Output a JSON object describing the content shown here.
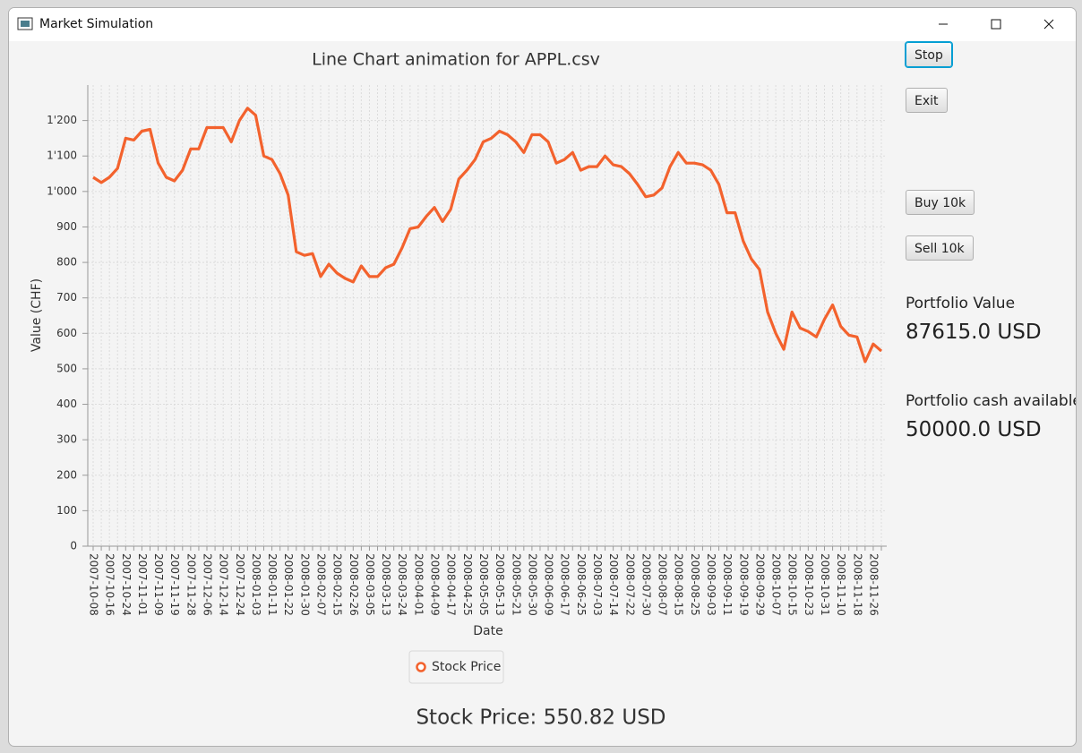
{
  "window": {
    "title": "Market Simulation"
  },
  "buttons": [
    "Stop",
    "Exit",
    "Buy 10k",
    "Sell 10k"
  ],
  "portfolio": {
    "value_label": "Portfolio Value",
    "value": "87615.0 USD",
    "cash_label": "Portfolio cash available",
    "cash": "50000.0 USD"
  },
  "status": "Stock Price: 550.82 USD",
  "chart_data": {
    "type": "line",
    "title": "Line Chart animation for APPL.csv",
    "x_label": "Date",
    "y_label": "Value (CHF)",
    "categories": [
      "2007-10-08",
      null,
      "2007-10-16",
      null,
      "2007-10-24",
      null,
      "2007-11-01",
      null,
      "2007-11-09",
      null,
      "2007-11-19",
      null,
      "2007-11-28",
      null,
      "2007-12-06",
      null,
      "2007-12-14",
      null,
      "2007-12-24",
      null,
      "2008-01-03",
      null,
      "2008-01-11",
      null,
      "2008-01-22",
      null,
      "2008-01-30",
      null,
      "2008-02-07",
      null,
      "2008-02-15",
      null,
      "2008-02-26",
      null,
      "2008-03-05",
      null,
      "2008-03-13",
      null,
      "2008-03-24",
      null,
      "2008-04-01",
      null,
      "2008-04-09",
      null,
      "2008-04-17",
      null,
      "2008-04-25",
      null,
      "2008-05-05",
      null,
      "2008-05-13",
      null,
      "2008-05-21",
      null,
      "2008-05-30",
      null,
      "2008-06-09",
      null,
      "2008-06-17",
      null,
      "2008-06-25",
      null,
      "2008-07-03",
      null,
      "2008-07-14",
      null,
      "2008-07-22",
      null,
      "2008-07-30",
      null,
      "2008-08-07",
      null,
      "2008-08-15",
      null,
      "2008-08-25",
      null,
      "2008-09-03",
      null,
      "2008-09-11",
      null,
      "2008-09-19",
      null,
      "2008-09-29",
      null,
      "2008-10-07",
      null,
      "2008-10-15",
      null,
      "2008-10-23",
      null,
      "2008-10-31",
      null,
      "2008-11-10",
      null,
      "2008-11-18",
      null,
      "2008-11-26",
      null
    ],
    "series": [
      {
        "name": "Stock Price",
        "color": "#f3622d",
        "values": [
          1040,
          1025,
          1040,
          1065,
          1150,
          1145,
          1170,
          1175,
          1080,
          1040,
          1030,
          1060,
          1120,
          1120,
          1180,
          1180,
          1180,
          1140,
          1200,
          1235,
          1215,
          1100,
          1090,
          1050,
          990,
          830,
          820,
          825,
          760,
          795,
          770,
          755,
          745,
          790,
          760,
          760,
          785,
          795,
          840,
          895,
          900,
          930,
          955,
          915,
          950,
          1035,
          1060,
          1090,
          1140,
          1150,
          1170,
          1160,
          1140,
          1110,
          1160,
          1160,
          1140,
          1080,
          1090,
          1110,
          1060,
          1070,
          1070,
          1100,
          1075,
          1070,
          1050,
          1020,
          985,
          990,
          1010,
          1070,
          1110,
          1080,
          1080,
          1075,
          1060,
          1020,
          940,
          940,
          860,
          810,
          780,
          660,
          600,
          555,
          660,
          615,
          605,
          590,
          640,
          680,
          620,
          595,
          590,
          520,
          570,
          550
        ]
      }
    ],
    "ylim": [
      0,
      1300
    ],
    "yticks": [
      0,
      100,
      200,
      300,
      400,
      500,
      600,
      700,
      800,
      900,
      {
        "value": 1000,
        "label": "1'000"
      },
      {
        "value": 1100,
        "label": "1'100"
      },
      {
        "value": 1200,
        "label": "1'200"
      }
    ],
    "grid": true
  }
}
